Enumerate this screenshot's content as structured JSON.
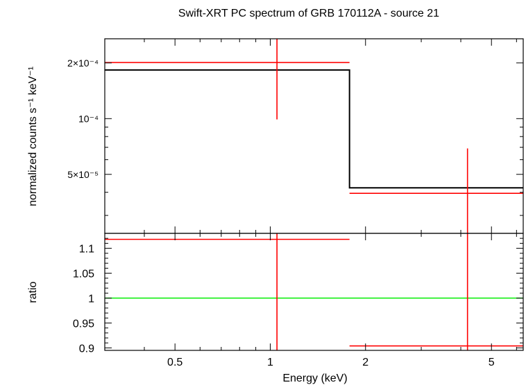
{
  "chart_data": [
    {
      "type": "scatter",
      "panel": "spectrum",
      "title": "Swift-XRT PC spectrum of GRB 170112A - source 21",
      "ylabel": "normalized counts s⁻¹ keV⁻¹",
      "xscale": "log",
      "yscale": "log",
      "xlim": [
        0.3,
        6.3
      ],
      "ylim": [
        2.4e-05,
        0.00027
      ],
      "yticks": [
        {
          "value": 0.0002,
          "label": "2×10⁻⁴"
        },
        {
          "value": 0.0001,
          "label": "10⁻⁴"
        },
        {
          "value": 5e-05,
          "label": "5×10⁻⁵"
        }
      ],
      "series": [
        {
          "kind": "data",
          "color": "#ff0000",
          "points": [
            {
              "x": 1.05,
              "xlo": 0.3,
              "xhi": 1.78,
              "y": 0.000201,
              "ylo": 9.9e-05,
              "yhi": 0.00027
            },
            {
              "x": 4.2,
              "xlo": 1.78,
              "xhi": 6.3,
              "y": 3.95e-05,
              "ylo": 2.4e-05,
              "yhi": 6.9e-05
            }
          ]
        },
        {
          "kind": "model",
          "color": "#000000",
          "steps": [
            {
              "xlo": 0.3,
              "xhi": 1.78,
              "y": 0.000183
            },
            {
              "xlo": 1.78,
              "xhi": 6.3,
              "y": 4.23e-05
            }
          ]
        }
      ]
    },
    {
      "type": "scatter",
      "panel": "ratio",
      "xlabel": "Energy (keV)",
      "ylabel": "ratio",
      "xscale": "log",
      "xlim": [
        0.3,
        6.3
      ],
      "ylim": [
        0.895,
        1.13
      ],
      "xticks": [
        {
          "value": 0.5,
          "label": "0.5"
        },
        {
          "value": 1,
          "label": "1"
        },
        {
          "value": 2,
          "label": "2"
        },
        {
          "value": 5,
          "label": "5"
        }
      ],
      "yticks": [
        {
          "value": 0.9,
          "label": "0.9"
        },
        {
          "value": 0.95,
          "label": "0.95"
        },
        {
          "value": 1,
          "label": "1"
        },
        {
          "value": 1.05,
          "label": "1.05"
        },
        {
          "value": 1.1,
          "label": "1.1"
        }
      ],
      "reference_line": {
        "y": 1,
        "color": "#00ee00"
      },
      "series": [
        {
          "kind": "data",
          "color": "#ff0000",
          "points": [
            {
              "x": 1.05,
              "xlo": 0.3,
              "xhi": 1.78,
              "y": 1.118,
              "ylo": 0.895,
              "yhi": 1.13
            },
            {
              "x": 4.2,
              "xlo": 1.78,
              "xhi": 6.3,
              "y": 0.904,
              "ylo": 0.895,
              "yhi": 1.13
            }
          ]
        }
      ]
    }
  ]
}
